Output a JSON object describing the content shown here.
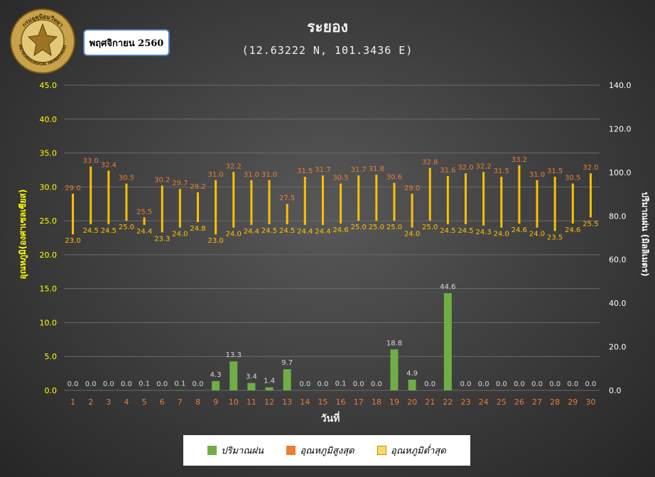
{
  "header": {
    "title": "ระยอง",
    "subtitle": "(12.63222 N, 101.3436 E)",
    "month_label": "พฤศจิกายน 2560"
  },
  "logo": {
    "top_text": "กรมอุตุนิยมวิทยา",
    "bottom_text": "METEOROLOGICAL DEPARTMENT"
  },
  "colors": {
    "rain": "#70ad47",
    "rain_label": "#d9d9d9",
    "temp_bar": "#ffc000",
    "max_label": "#ed7d31",
    "min_label": "#ffc000",
    "left_axis": "#ffff00",
    "right_axis": "#ffffff",
    "x_ticks": "#ed7d31",
    "grid": "#6a6a6a"
  },
  "legend": {
    "items": [
      {
        "label": "ปริมาณฝน",
        "color": "#70ad47"
      },
      {
        "label": "อุณหภูมิสูงสุด",
        "color": "#ed7d31"
      },
      {
        "label": "อุณหภูมิต่ำสุด",
        "color": "#ffd966"
      }
    ]
  },
  "chart_data": {
    "type": "bar",
    "title": "ระยอง",
    "subtitle": "(12.63222 N, 101.3436 E)",
    "xlabel": "วันที่",
    "ylabel_left": "อุณหภูมิ(องศาเซลเซียส)",
    "ylabel_right": "ปริมาณฝน (มิลลิเมตร)",
    "ylim_left": [
      0,
      45
    ],
    "ylim_right": [
      0,
      140
    ],
    "left_ticks": [
      "0.0",
      "5.0",
      "10.0",
      "15.0",
      "20.0",
      "25.0",
      "30.0",
      "35.0",
      "40.0",
      "45.0"
    ],
    "right_ticks": [
      "0.0",
      "20.0",
      "40.0",
      "60.0",
      "80.0",
      "100.0",
      "120.0",
      "140.0"
    ],
    "grid": true,
    "legend_position": "bottom",
    "categories": [
      "1",
      "2",
      "3",
      "4",
      "5",
      "6",
      "7",
      "8",
      "9",
      "10",
      "11",
      "12",
      "13",
      "14",
      "15",
      "16",
      "17",
      "18",
      "19",
      "20",
      "21",
      "22",
      "23",
      "24",
      "25",
      "26",
      "27",
      "28",
      "29",
      "30"
    ],
    "series": [
      {
        "name": "ปริมาณฝน",
        "axis": "right",
        "values": [
          0.0,
          0.0,
          0.0,
          0.0,
          0.1,
          0.0,
          0.1,
          0.0,
          4.3,
          13.3,
          3.4,
          1.4,
          9.7,
          0.0,
          0.0,
          0.1,
          0.0,
          0.0,
          18.8,
          4.9,
          0.0,
          44.6,
          0.0,
          0.0,
          0.0,
          0.0,
          0.0,
          0.0,
          0.0,
          0.0
        ]
      },
      {
        "name": "อุณหภูมิสูงสุด",
        "axis": "left",
        "values": [
          29.0,
          33.0,
          32.4,
          30.5,
          25.5,
          30.2,
          29.7,
          29.2,
          31.0,
          32.2,
          31.0,
          31.0,
          27.5,
          31.5,
          31.7,
          30.5,
          31.7,
          31.8,
          30.6,
          29.0,
          32.8,
          31.6,
          32.0,
          32.2,
          31.5,
          33.2,
          31.0,
          31.5,
          30.5,
          32.0
        ]
      },
      {
        "name": "อุณหภูมิต่ำสุด",
        "axis": "left",
        "values": [
          23.0,
          24.5,
          24.5,
          25.0,
          24.4,
          23.3,
          24.0,
          24.8,
          23.0,
          24.0,
          24.4,
          24.5,
          24.5,
          24.4,
          24.4,
          24.6,
          25.0,
          25.0,
          25.0,
          24.0,
          25.0,
          24.5,
          24.5,
          24.3,
          24.0,
          24.6,
          24.0,
          23.5,
          24.6,
          25.5
        ]
      }
    ]
  }
}
